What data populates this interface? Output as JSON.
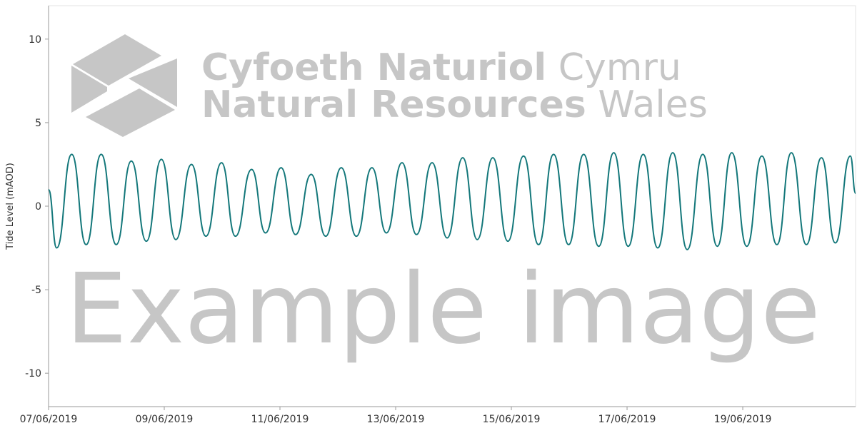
{
  "chart_data": {
    "type": "line",
    "y_label": "Tide Level (mAOD)",
    "watermark": {
      "welsh_bold": "Cyfoeth Naturiol",
      "welsh_light": "Cymru",
      "english_bold": "Natural Resources",
      "english_light": "Wales",
      "caption": "Example image"
    },
    "x": [
      0,
      0.14,
      0.4,
      0.65,
      0.91,
      1.17,
      1.43,
      1.69,
      1.95,
      2.2,
      2.47,
      2.72,
      2.99,
      3.23,
      3.51,
      3.75,
      4.02,
      4.27,
      4.54,
      4.79,
      5.06,
      5.32,
      5.59,
      5.84,
      6.11,
      6.36,
      6.63,
      6.89,
      7.16,
      7.41,
      7.68,
      7.94,
      8.21,
      8.47,
      8.73,
      8.99,
      9.25,
      9.51,
      9.77,
      10.02,
      10.28,
      10.53,
      10.79,
      11.04,
      11.31,
      11.56,
      11.81,
      12.07,
      12.33,
      12.59,
      12.84,
      13.1,
      13.36,
      13.6,
      13.86,
      13.95
    ],
    "series": [
      {
        "name": "Tide Level",
        "color": "#13777a",
        "values": [
          0.98,
          -2.5,
          3.1,
          -2.3,
          3.1,
          -2.3,
          2.7,
          -2.1,
          2.8,
          -2.0,
          2.5,
          -1.8,
          2.6,
          -1.8,
          2.2,
          -1.6,
          2.3,
          -1.7,
          1.9,
          -1.8,
          2.3,
          -1.8,
          2.3,
          -1.6,
          2.6,
          -1.7,
          2.6,
          -1.9,
          2.9,
          -2.0,
          2.9,
          -2.1,
          3.0,
          -2.3,
          3.1,
          -2.3,
          3.1,
          -2.4,
          3.2,
          -2.4,
          3.1,
          -2.5,
          3.2,
          -2.6,
          3.1,
          -2.4,
          3.2,
          -2.4,
          3.0,
          -2.3,
          3.2,
          -2.3,
          2.9,
          -2.2,
          3.0,
          0.77
        ]
      }
    ],
    "xlim": [
      0,
      13.95
    ],
    "xticks": [
      {
        "value": 0,
        "label": "07/06/2019"
      },
      {
        "value": 2,
        "label": "09/06/2019"
      },
      {
        "value": 4,
        "label": "11/06/2019"
      },
      {
        "value": 6,
        "label": "13/06/2019"
      },
      {
        "value": 8,
        "label": "15/06/2019"
      },
      {
        "value": 10,
        "label": "17/06/2019"
      },
      {
        "value": 12,
        "label": "19/06/2019"
      }
    ],
    "ylim": [
      -12,
      12
    ],
    "yticks": [
      10,
      5,
      0,
      -5,
      -10
    ],
    "grid": false
  }
}
